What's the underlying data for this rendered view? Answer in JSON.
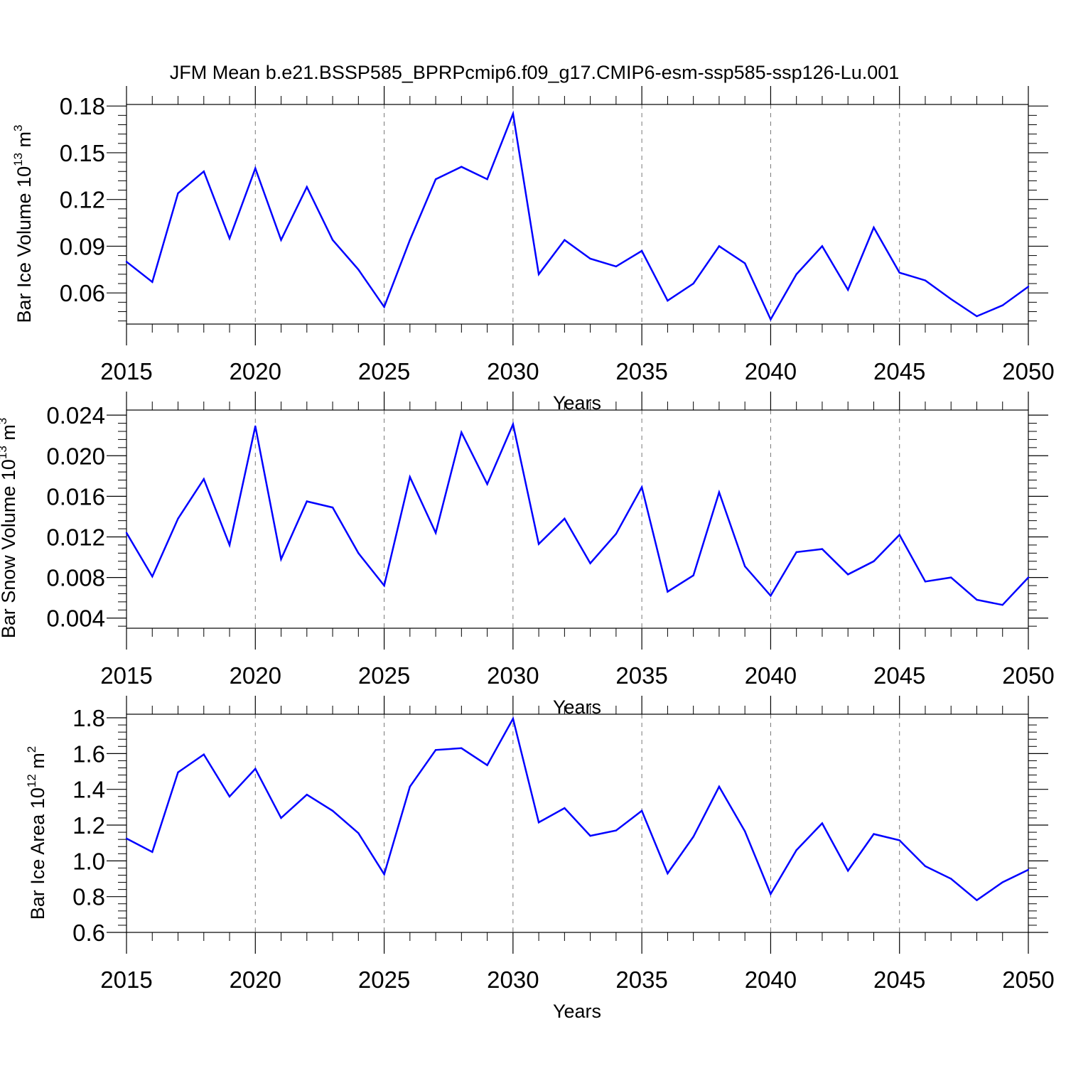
{
  "title": "JFM Mean b.e21.BSSP585_BPRPcmip6.f09_g17.CMIP6-esm-ssp585-ssp126-Lu.001",
  "line_color": "#0000ff",
  "chart_data": [
    {
      "type": "line",
      "xlabel": "Years",
      "ylabel_base": "Bar Ice Volume 10",
      "ylabel_exp": "13",
      "ylabel_unit": "m",
      "ylabel_unit_exp": "3",
      "xlim": [
        2015,
        2050
      ],
      "ylim": [
        0.04,
        0.181
      ],
      "x_ticks": [
        "2015",
        "2020",
        "2025",
        "2030",
        "2035",
        "2040",
        "2045",
        "2050"
      ],
      "y_ticks": [
        "0.06",
        "0.09",
        "0.12",
        "0.15",
        "0.18"
      ],
      "y_tick_values": [
        0.06,
        0.09,
        0.12,
        0.15,
        0.18
      ],
      "x": [
        2015,
        2016,
        2017,
        2018,
        2019,
        2020,
        2021,
        2022,
        2023,
        2024,
        2025,
        2026,
        2027,
        2028,
        2029,
        2030,
        2031,
        2032,
        2033,
        2034,
        2035,
        2036,
        2037,
        2038,
        2039,
        2040,
        2041,
        2042,
        2043,
        2044,
        2045,
        2046,
        2047,
        2048,
        2049,
        2050
      ],
      "values": [
        0.08,
        0.067,
        0.124,
        0.138,
        0.095,
        0.14,
        0.094,
        0.128,
        0.094,
        0.075,
        0.051,
        0.094,
        0.133,
        0.141,
        0.133,
        0.175,
        0.072,
        0.094,
        0.082,
        0.077,
        0.087,
        0.055,
        0.066,
        0.09,
        0.079,
        0.043,
        0.072,
        0.09,
        0.062,
        0.102,
        0.073,
        0.068,
        0.056,
        0.045,
        0.052,
        0.064
      ]
    },
    {
      "type": "line",
      "xlabel": "Years",
      "ylabel_base": "Bar Snow Volume 10",
      "ylabel_exp": "13",
      "ylabel_unit": "m",
      "ylabel_unit_exp": "3",
      "xlim": [
        2015,
        2050
      ],
      "ylim": [
        0.003,
        0.0245
      ],
      "x_ticks": [
        "2015",
        "2020",
        "2025",
        "2030",
        "2035",
        "2040",
        "2045",
        "2050"
      ],
      "y_ticks": [
        "0.004",
        "0.008",
        "0.012",
        "0.016",
        "0.020",
        "0.024"
      ],
      "y_tick_values": [
        0.004,
        0.008,
        0.012,
        0.016,
        0.02,
        0.024
      ],
      "x": [
        2015,
        2016,
        2017,
        2018,
        2019,
        2020,
        2021,
        2022,
        2023,
        2024,
        2025,
        2026,
        2027,
        2028,
        2029,
        2030,
        2031,
        2032,
        2033,
        2034,
        2035,
        2036,
        2037,
        2038,
        2039,
        2040,
        2041,
        2042,
        2043,
        2044,
        2045,
        2046,
        2047,
        2048,
        2049,
        2050
      ],
      "values": [
        0.0124,
        0.0081,
        0.0138,
        0.0177,
        0.0112,
        0.0229,
        0.0098,
        0.0155,
        0.0149,
        0.0104,
        0.0072,
        0.0179,
        0.0124,
        0.0223,
        0.0172,
        0.0231,
        0.0113,
        0.0138,
        0.0094,
        0.0123,
        0.0169,
        0.0066,
        0.0082,
        0.0164,
        0.0091,
        0.0062,
        0.0105,
        0.0108,
        0.0083,
        0.0096,
        0.0122,
        0.0076,
        0.008,
        0.0058,
        0.0053,
        0.008
      ]
    },
    {
      "type": "line",
      "xlabel": "Years",
      "ylabel_base": "Bar Ice Area 10",
      "ylabel_exp": "12",
      "ylabel_unit": "m",
      "ylabel_unit_exp": "2",
      "xlim": [
        2015,
        2050
      ],
      "ylim": [
        0.6,
        1.82
      ],
      "x_ticks": [
        "2015",
        "2020",
        "2025",
        "2030",
        "2035",
        "2040",
        "2045",
        "2050"
      ],
      "y_ticks": [
        "0.6",
        "0.8",
        "1.0",
        "1.2",
        "1.4",
        "1.6",
        "1.8"
      ],
      "y_tick_values": [
        0.6,
        0.8,
        1.0,
        1.2,
        1.4,
        1.6,
        1.8
      ],
      "x": [
        2015,
        2016,
        2017,
        2018,
        2019,
        2020,
        2021,
        2022,
        2023,
        2024,
        2025,
        2026,
        2027,
        2028,
        2029,
        2030,
        2031,
        2032,
        2033,
        2034,
        2035,
        2036,
        2037,
        2038,
        2039,
        2040,
        2041,
        2042,
        2043,
        2044,
        2045,
        2046,
        2047,
        2048,
        2049,
        2050
      ],
      "values": [
        1.125,
        1.05,
        1.495,
        1.595,
        1.36,
        1.515,
        1.24,
        1.37,
        1.28,
        1.155,
        0.925,
        1.415,
        1.62,
        1.63,
        1.535,
        1.795,
        1.215,
        1.295,
        1.14,
        1.17,
        1.28,
        0.93,
        1.135,
        1.415,
        1.165,
        0.815,
        1.06,
        1.21,
        0.945,
        1.15,
        1.115,
        0.97,
        0.9,
        0.78,
        0.88,
        0.95
      ]
    }
  ]
}
